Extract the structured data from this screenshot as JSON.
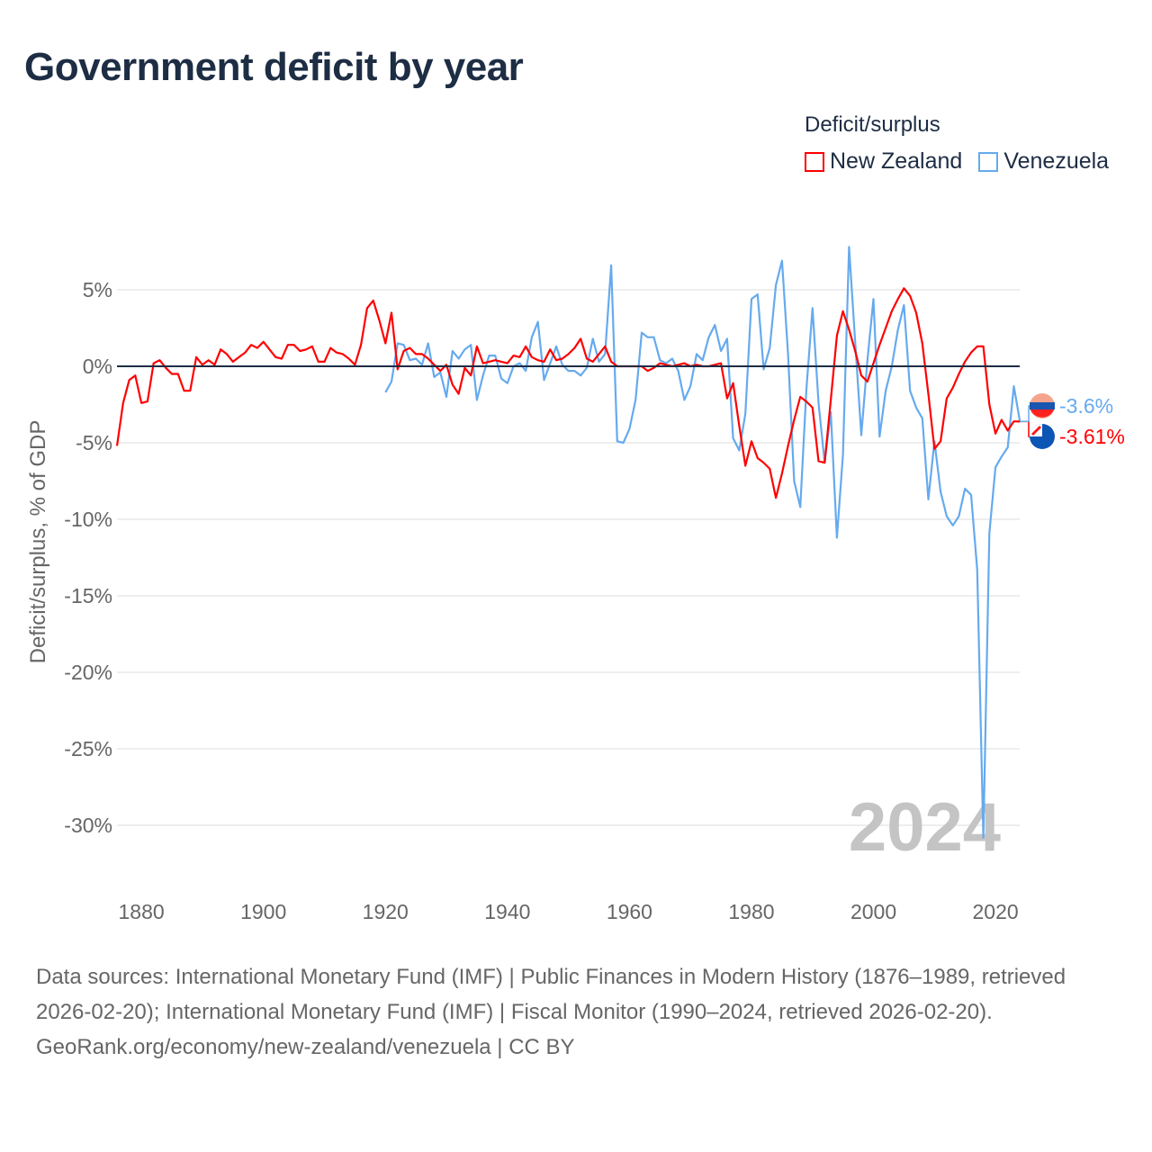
{
  "title": "Government deficit by year",
  "legend": {
    "title": "Deficit/surplus",
    "items": [
      {
        "name": "New Zealand",
        "color": "#ff0000"
      },
      {
        "name": "Venezuela",
        "color": "#66aaee"
      }
    ]
  },
  "footer": {
    "sources": "Data sources: International Monetary Fund (IMF) | Public Finances in Modern History (1876–1989, retrieved 2026-02-20); International Monetary Fund (IMF) | Fiscal Monitor (1990–2024, retrieved 2026-02-20).",
    "credit": "GeoRank.org/economy/new-zealand/venezuela | CC BY"
  },
  "chart_data": {
    "type": "line",
    "title": "Government deficit by year",
    "xlabel": "",
    "ylabel": "Deficit/surplus, % of GDP",
    "xlim": [
      1876,
      2024
    ],
    "ylim": [
      -32,
      8
    ],
    "x_ticks": [
      1880,
      1900,
      1920,
      1940,
      1960,
      1980,
      2000,
      2020
    ],
    "y_ticks": [
      5,
      0,
      -5,
      -10,
      -15,
      -20,
      -25,
      -30
    ],
    "y_tick_labels": [
      "5%",
      "0%",
      "-5%",
      "-10%",
      "-15%",
      "-20%",
      "-25%",
      "-30%"
    ],
    "grid": true,
    "legend_position": "top-right",
    "year_watermark": "2024",
    "series": [
      {
        "name": "New Zealand",
        "color": "#ff0000",
        "start_year": 1876,
        "end_label": "-3.61%",
        "values": [
          -5.2,
          -2.4,
          -0.9,
          -0.6,
          -2.4,
          -2.3,
          0.2,
          0.4,
          -0.1,
          -0.5,
          -0.5,
          -1.6,
          -1.6,
          0.6,
          0.1,
          0.4,
          0.1,
          1.1,
          0.8,
          0.3,
          0.6,
          0.9,
          1.4,
          1.2,
          1.6,
          1.1,
          0.6,
          0.5,
          1.4,
          1.4,
          1.0,
          1.1,
          1.3,
          0.3,
          0.3,
          1.2,
          0.9,
          0.8,
          0.5,
          0.1,
          1.4,
          3.8,
          4.3,
          3.0,
          1.5,
          3.5,
          -0.2,
          1.0,
          1.2,
          0.8,
          0.8,
          0.5,
          0.1,
          -0.3,
          0.1,
          -1.2,
          -1.8,
          -0.1,
          -0.6,
          1.3,
          0.2,
          0.3,
          0.4,
          0.3,
          0.2,
          0.7,
          0.6,
          1.3,
          0.6,
          0.4,
          0.3,
          1.1,
          0.4,
          0.5,
          0.8,
          1.2,
          1.8,
          0.5,
          0.3,
          0.8,
          1.3,
          0.3,
          0.0,
          0.0,
          0.0,
          0.0,
          0.0,
          -0.3,
          -0.1,
          0.2,
          0.1,
          0.0,
          0.1,
          0.2,
          0.0,
          0.1,
          0.0,
          0.0,
          0.1,
          0.2,
          -2.1,
          -1.1,
          -3.9,
          -6.5,
          -4.9,
          -6.0,
          -6.3,
          -6.7,
          -8.6,
          -7.0,
          -5.2,
          -3.5,
          -2.0,
          -2.3,
          -2.7,
          -6.2,
          -6.3,
          -2.2,
          2.0,
          3.6,
          2.4,
          1.0,
          -0.6,
          -1.0,
          0.2,
          1.4,
          2.5,
          3.6,
          4.4,
          5.1,
          4.6,
          3.5,
          1.5,
          -1.8,
          -5.4,
          -4.9,
          -2.1,
          -1.4,
          -0.5,
          0.3,
          0.9,
          1.3,
          1.3,
          -2.5,
          -4.4,
          -3.5,
          -4.2,
          -3.6,
          -3.61
        ]
      },
      {
        "name": "Venezuela",
        "color": "#66aaee",
        "start_year": 1920,
        "end_label": "-3.6%",
        "values": [
          -1.7,
          -1.0,
          1.5,
          1.4,
          0.4,
          0.5,
          0.1,
          1.5,
          -0.7,
          -0.4,
          -2.0,
          1.0,
          0.5,
          1.1,
          1.4,
          -2.2,
          -0.6,
          0.7,
          0.7,
          -0.8,
          -1.1,
          0.0,
          0.2,
          -0.3,
          1.9,
          2.9,
          -0.9,
          0.2,
          1.3,
          0.1,
          -0.3,
          -0.3,
          -0.6,
          -0.1,
          1.8,
          0.3,
          0.8,
          6.6,
          -4.9,
          -5.0,
          -4.1,
          -2.2,
          2.2,
          1.9,
          1.9,
          0.4,
          0.2,
          0.5,
          -0.3,
          -2.2,
          -1.3,
          0.8,
          0.4,
          1.9,
          2.7,
          1.0,
          1.8,
          -4.7,
          -5.5,
          -3.1,
          4.4,
          4.7,
          -0.2,
          1.2,
          5.3,
          6.9,
          0.8,
          -7.5,
          -9.2,
          -1.5,
          3.8,
          -2.4,
          -6.3,
          -3.0,
          -11.2,
          -5.8,
          7.8,
          1.6,
          -4.5,
          0.4,
          4.4,
          -4.6,
          -1.6,
          0.0,
          2.4,
          4.0,
          -1.6,
          -2.7,
          -3.4,
          -8.7,
          -4.9,
          -8.2,
          -9.8,
          -10.4,
          -9.8,
          -8.0,
          -8.4,
          -13.3,
          -30.8,
          -10.9,
          -6.6,
          -5.9,
          -5.3,
          -1.3,
          -3.6
        ]
      }
    ]
  }
}
